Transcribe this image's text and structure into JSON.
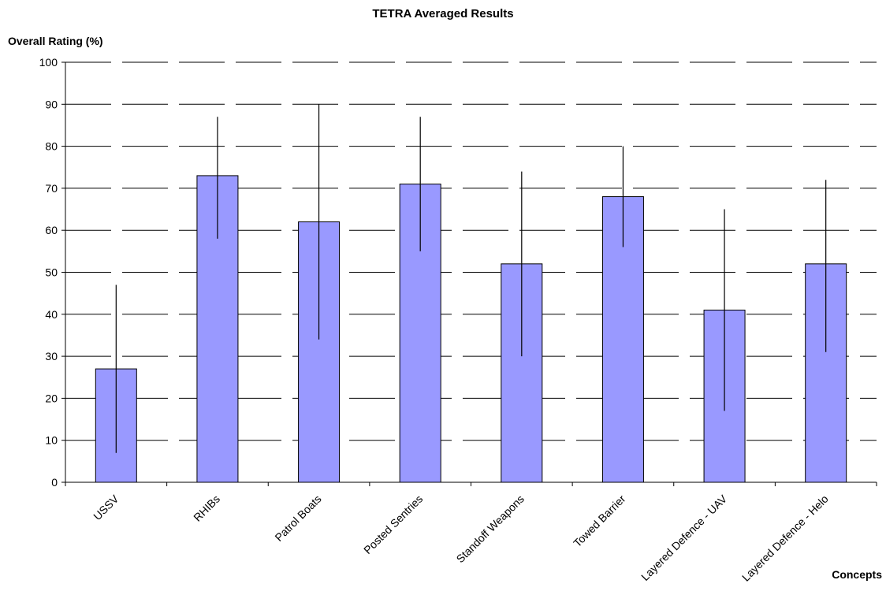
{
  "chart_data": {
    "type": "bar",
    "title": "TETRA Averaged Results",
    "xlabel": "Concepts",
    "ylabel": "Overall Rating (%)",
    "ylim": [
      0,
      100
    ],
    "yticks": [
      0,
      10,
      20,
      30,
      40,
      50,
      60,
      70,
      80,
      90,
      100
    ],
    "grid": "horizontal dashed",
    "legend": "none",
    "bar_color": "#9999ff",
    "categories": [
      "USSV",
      "RHIBs",
      "Patrol Boats",
      "Posted Sentries",
      "Standoff Weapons",
      "Towed Barrier",
      "Layered Defence - UAV",
      "Layered Defence - Helo"
    ],
    "values": [
      27,
      73,
      62,
      71,
      52,
      68,
      41,
      52
    ],
    "error_bars": [
      {
        "low": 7,
        "high": 47
      },
      {
        "low": 58,
        "high": 87
      },
      {
        "low": 34,
        "high": 90
      },
      {
        "low": 55,
        "high": 87
      },
      {
        "low": 30,
        "high": 74
      },
      {
        "low": 56,
        "high": 80
      },
      {
        "low": 17,
        "high": 65
      },
      {
        "low": 31,
        "high": 72
      }
    ]
  }
}
